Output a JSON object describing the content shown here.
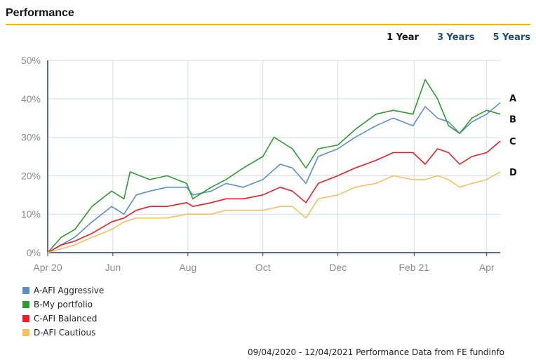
{
  "header": {
    "title": "Performance"
  },
  "periods": {
    "one_year": "1 Year",
    "three_years": "3 Years",
    "five_years": "5 Years"
  },
  "footer": {
    "note": "09/04/2020 - 12/04/2021 Performance Data from FE fundinfo"
  },
  "colors": {
    "A": "#5b8ec9",
    "B": "#2e9c2e",
    "C": "#ee1c25",
    "D": "#f7c05a",
    "accent": "#f2b705"
  },
  "chart_data": {
    "type": "line",
    "xlabel": "",
    "ylabel": "",
    "x_range": [
      "2020-04-09",
      "2021-04-12"
    ],
    "ylim": [
      0,
      50
    ],
    "y_ticks": [
      "0%",
      "10%",
      "20%",
      "30%",
      "40%",
      "50%"
    ],
    "x_tick_labels": [
      "Apr 20",
      "Jun",
      "Aug",
      "Oct",
      "Dec",
      "Feb 21",
      "Apr"
    ],
    "x_tick_dates": [
      "2020-04-09",
      "2020-06-01",
      "2020-08-01",
      "2020-10-01",
      "2020-12-01",
      "2021-02-01",
      "2021-04-01"
    ],
    "grid": true,
    "legend_position": "bottom-left",
    "series": [
      {
        "name": "A-AFI Aggressive",
        "end_label": "A",
        "points": [
          [
            "2020-04-09",
            0
          ],
          [
            "2020-04-20",
            2
          ],
          [
            "2020-05-01",
            4
          ],
          [
            "2020-05-15",
            8
          ],
          [
            "2020-05-31",
            12
          ],
          [
            "2020-06-10",
            10
          ],
          [
            "2020-06-20",
            15
          ],
          [
            "2020-07-01",
            16
          ],
          [
            "2020-07-15",
            17
          ],
          [
            "2020-07-31",
            17
          ],
          [
            "2020-08-05",
            15
          ],
          [
            "2020-08-20",
            16
          ],
          [
            "2020-09-01",
            18
          ],
          [
            "2020-09-15",
            17
          ],
          [
            "2020-10-01",
            19
          ],
          [
            "2020-10-15",
            23
          ],
          [
            "2020-10-25",
            22
          ],
          [
            "2020-11-05",
            18
          ],
          [
            "2020-11-15",
            25
          ],
          [
            "2020-12-01",
            27
          ],
          [
            "2020-12-15",
            30
          ],
          [
            "2021-01-01",
            33
          ],
          [
            "2021-01-15",
            35
          ],
          [
            "2021-01-31",
            33
          ],
          [
            "2021-02-10",
            38
          ],
          [
            "2021-02-20",
            35
          ],
          [
            "2021-03-01",
            34
          ],
          [
            "2021-03-10",
            31
          ],
          [
            "2021-03-20",
            34
          ],
          [
            "2021-04-01",
            36
          ],
          [
            "2021-04-12",
            39
          ]
        ]
      },
      {
        "name": "B-My portfolio",
        "end_label": "B",
        "points": [
          [
            "2020-04-09",
            0
          ],
          [
            "2020-04-20",
            4
          ],
          [
            "2020-05-01",
            6
          ],
          [
            "2020-05-15",
            12
          ],
          [
            "2020-05-31",
            16
          ],
          [
            "2020-06-10",
            14
          ],
          [
            "2020-06-15",
            21
          ],
          [
            "2020-07-01",
            19
          ],
          [
            "2020-07-15",
            20
          ],
          [
            "2020-07-31",
            18
          ],
          [
            "2020-08-05",
            14
          ],
          [
            "2020-08-20",
            17
          ],
          [
            "2020-09-01",
            19
          ],
          [
            "2020-09-15",
            22
          ],
          [
            "2020-10-01",
            25
          ],
          [
            "2020-10-10",
            30
          ],
          [
            "2020-10-25",
            27
          ],
          [
            "2020-11-05",
            22
          ],
          [
            "2020-11-15",
            27
          ],
          [
            "2020-12-01",
            28
          ],
          [
            "2020-12-15",
            32
          ],
          [
            "2021-01-01",
            36
          ],
          [
            "2021-01-15",
            37
          ],
          [
            "2021-01-31",
            36
          ],
          [
            "2021-02-10",
            45
          ],
          [
            "2021-02-20",
            40
          ],
          [
            "2021-03-01",
            33
          ],
          [
            "2021-03-10",
            31
          ],
          [
            "2021-03-20",
            35
          ],
          [
            "2021-04-01",
            37
          ],
          [
            "2021-04-12",
            36
          ]
        ]
      },
      {
        "name": "C-AFI Balanced",
        "end_label": "C",
        "points": [
          [
            "2020-04-09",
            0
          ],
          [
            "2020-04-20",
            2
          ],
          [
            "2020-05-01",
            3
          ],
          [
            "2020-05-15",
            5
          ],
          [
            "2020-05-31",
            8
          ],
          [
            "2020-06-10",
            9
          ],
          [
            "2020-06-20",
            11
          ],
          [
            "2020-07-01",
            12
          ],
          [
            "2020-07-15",
            12
          ],
          [
            "2020-07-31",
            13
          ],
          [
            "2020-08-05",
            12
          ],
          [
            "2020-08-20",
            13
          ],
          [
            "2020-09-01",
            14
          ],
          [
            "2020-09-15",
            14
          ],
          [
            "2020-10-01",
            15
          ],
          [
            "2020-10-15",
            17
          ],
          [
            "2020-10-25",
            16
          ],
          [
            "2020-11-05",
            13
          ],
          [
            "2020-11-15",
            18
          ],
          [
            "2020-12-01",
            20
          ],
          [
            "2020-12-15",
            22
          ],
          [
            "2021-01-01",
            24
          ],
          [
            "2021-01-15",
            26
          ],
          [
            "2021-01-31",
            26
          ],
          [
            "2021-02-10",
            23
          ],
          [
            "2021-02-20",
            27
          ],
          [
            "2021-03-01",
            26
          ],
          [
            "2021-03-10",
            23
          ],
          [
            "2021-03-20",
            25
          ],
          [
            "2021-04-01",
            26
          ],
          [
            "2021-04-12",
            29
          ]
        ]
      },
      {
        "name": "D-AFI Cautious",
        "end_label": "D",
        "points": [
          [
            "2020-04-09",
            0
          ],
          [
            "2020-04-20",
            1
          ],
          [
            "2020-05-01",
            2
          ],
          [
            "2020-05-15",
            4
          ],
          [
            "2020-05-31",
            6
          ],
          [
            "2020-06-10",
            8
          ],
          [
            "2020-06-20",
            9
          ],
          [
            "2020-07-01",
            9
          ],
          [
            "2020-07-15",
            9
          ],
          [
            "2020-07-31",
            10
          ],
          [
            "2020-08-05",
            10
          ],
          [
            "2020-08-20",
            10
          ],
          [
            "2020-09-01",
            11
          ],
          [
            "2020-09-15",
            11
          ],
          [
            "2020-10-01",
            11
          ],
          [
            "2020-10-15",
            12
          ],
          [
            "2020-10-25",
            12
          ],
          [
            "2020-11-05",
            9
          ],
          [
            "2020-11-15",
            14
          ],
          [
            "2020-12-01",
            15
          ],
          [
            "2020-12-15",
            17
          ],
          [
            "2021-01-01",
            18
          ],
          [
            "2021-01-15",
            20
          ],
          [
            "2021-01-31",
            19
          ],
          [
            "2021-02-10",
            19
          ],
          [
            "2021-02-20",
            20
          ],
          [
            "2021-03-01",
            19
          ],
          [
            "2021-03-10",
            17
          ],
          [
            "2021-03-20",
            18
          ],
          [
            "2021-04-01",
            19
          ],
          [
            "2021-04-12",
            21
          ]
        ]
      }
    ]
  }
}
